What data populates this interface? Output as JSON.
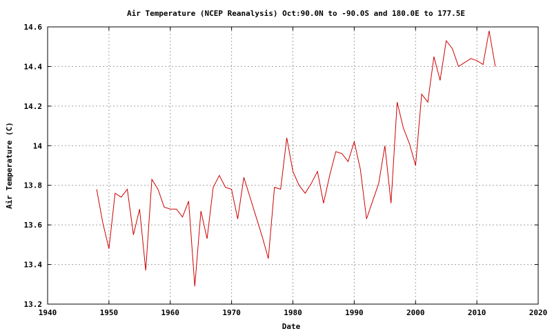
{
  "chart_data": {
    "type": "line",
    "title": "Air Temperature (NCEP Reanalysis) Oct:90.0N to -90.0S and 180.0E to 177.5E",
    "xlabel": "Date",
    "ylabel": "Air Temperature (C)",
    "xlim": [
      1940,
      2020
    ],
    "ylim": [
      13.2,
      14.6
    ],
    "xticks": [
      1940,
      1950,
      1960,
      1970,
      1980,
      1990,
      2000,
      2010,
      2020
    ],
    "yticks": [
      13.2,
      13.4,
      13.6,
      13.8,
      14.0,
      14.2,
      14.4,
      14.6
    ],
    "ytick_labels": [
      "13.2",
      "13.4",
      "13.6",
      "13.8",
      "14",
      "14.2",
      "14.4",
      "14.6"
    ],
    "grid": true,
    "line_color": "#cc0000",
    "series": [
      {
        "x": [
          1948,
          1949,
          1950,
          1951,
          1952,
          1953,
          1954,
          1955,
          1956,
          1957,
          1958,
          1959,
          1960,
          1961,
          1962,
          1963,
          1964,
          1965,
          1966,
          1967,
          1968,
          1969,
          1970,
          1971,
          1972,
          1973,
          1974,
          1975,
          1976,
          1977,
          1978,
          1979,
          1980,
          1981,
          1982,
          1983,
          1984,
          1985,
          1986,
          1987,
          1988,
          1989,
          1990,
          1991,
          1992,
          1993,
          1994,
          1995,
          1996,
          1997,
          1998,
          1999,
          2000,
          2001,
          2002,
          2003,
          2004,
          2005,
          2006,
          2007,
          2008,
          2009,
          2010,
          2011,
          2012,
          2013
        ],
        "y": [
          13.78,
          13.61,
          13.48,
          13.76,
          13.74,
          13.78,
          13.55,
          13.68,
          13.37,
          13.83,
          13.78,
          13.69,
          13.68,
          13.68,
          13.64,
          13.72,
          13.29,
          13.67,
          13.53,
          13.79,
          13.85,
          13.79,
          13.78,
          13.63,
          13.84,
          13.74,
          13.64,
          13.54,
          13.43,
          13.79,
          13.78,
          14.04,
          13.87,
          13.8,
          13.76,
          13.81,
          13.87,
          13.71,
          13.85,
          13.97,
          13.96,
          13.92,
          14.02,
          13.88,
          13.63,
          13.72,
          13.81,
          14.0,
          13.71,
          14.22,
          14.09,
          14.01,
          13.9,
          14.26,
          14.22,
          14.45,
          14.33,
          14.53,
          14.49,
          14.4,
          14.42,
          14.44,
          14.43,
          14.41,
          14.58,
          14.4
        ]
      }
    ]
  }
}
